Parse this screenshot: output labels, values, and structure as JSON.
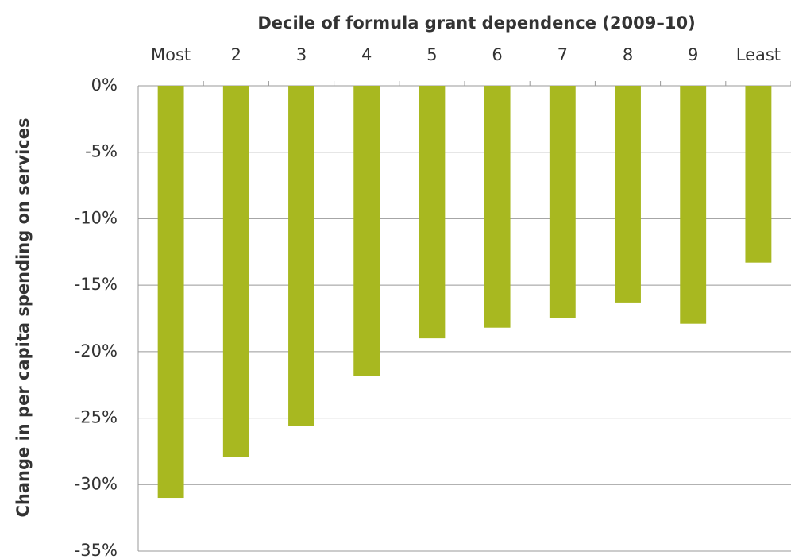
{
  "chart_data": {
    "type": "bar",
    "x_label": "Decile of formula grant dependence (2009–10)",
    "y_label": "Change in per capita spending on services",
    "categories": [
      "Most",
      "2",
      "3",
      "4",
      "5",
      "6",
      "7",
      "8",
      "9",
      "Least"
    ],
    "values": [
      -31.0,
      -27.9,
      -25.6,
      -21.8,
      -19.0,
      -18.2,
      -17.5,
      -16.3,
      -17.9,
      -13.3
    ],
    "color": "#a8b820",
    "ylim": [
      -35,
      0
    ],
    "yticks": [
      {
        "value": 0,
        "label": "0%"
      },
      {
        "value": -5,
        "label": "-5%"
      },
      {
        "value": -10,
        "label": "-10%"
      },
      {
        "value": -15,
        "label": "-15%"
      },
      {
        "value": -20,
        "label": "-20%"
      },
      {
        "value": -25,
        "label": "-25%"
      },
      {
        "value": -30,
        "label": "-30%"
      },
      {
        "value": -35,
        "label": "-35%"
      }
    ],
    "grid": true
  }
}
